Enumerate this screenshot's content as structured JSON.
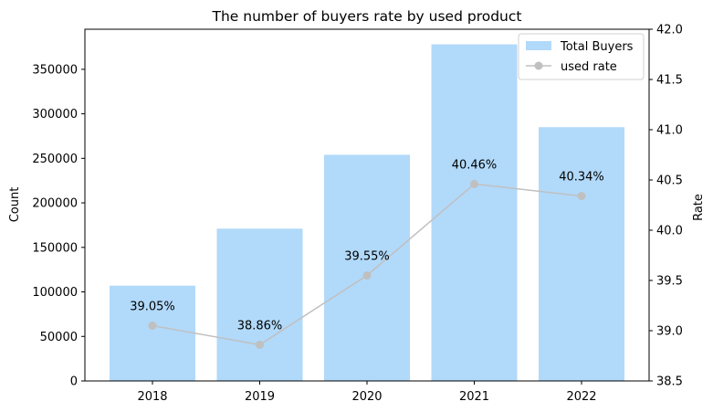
{
  "chart_data": {
    "type": "bar",
    "title": "The number of buyers rate by used product",
    "categories": [
      "2018",
      "2019",
      "2020",
      "2021",
      "2022"
    ],
    "series": [
      {
        "name": "Total Buyers",
        "type": "bar",
        "axis": "left",
        "color": "#b1d9fa",
        "values": [
          107000,
          171000,
          254000,
          378000,
          285000
        ]
      },
      {
        "name": "used rate",
        "type": "line",
        "axis": "right",
        "color": "#c0c0c0",
        "values": [
          39.05,
          38.86,
          39.55,
          40.46,
          40.34
        ],
        "labels": [
          "39.05%",
          "38.86%",
          "39.55%",
          "40.46%",
          "40.34%"
        ]
      }
    ],
    "ylabel_left": "Count",
    "ylabel_right": "Rate",
    "ylim_left": [
      0,
      395000
    ],
    "yticks_left": [
      "0",
      "50000",
      "100000",
      "150000",
      "200000",
      "250000",
      "300000",
      "350000"
    ],
    "ylim_right": [
      38.5,
      42.0
    ],
    "yticks_right": [
      "38.5",
      "39.0",
      "39.5",
      "40.0",
      "40.5",
      "41.0",
      "41.5",
      "42.0"
    ],
    "grid": false,
    "legend_position": "top-right"
  }
}
